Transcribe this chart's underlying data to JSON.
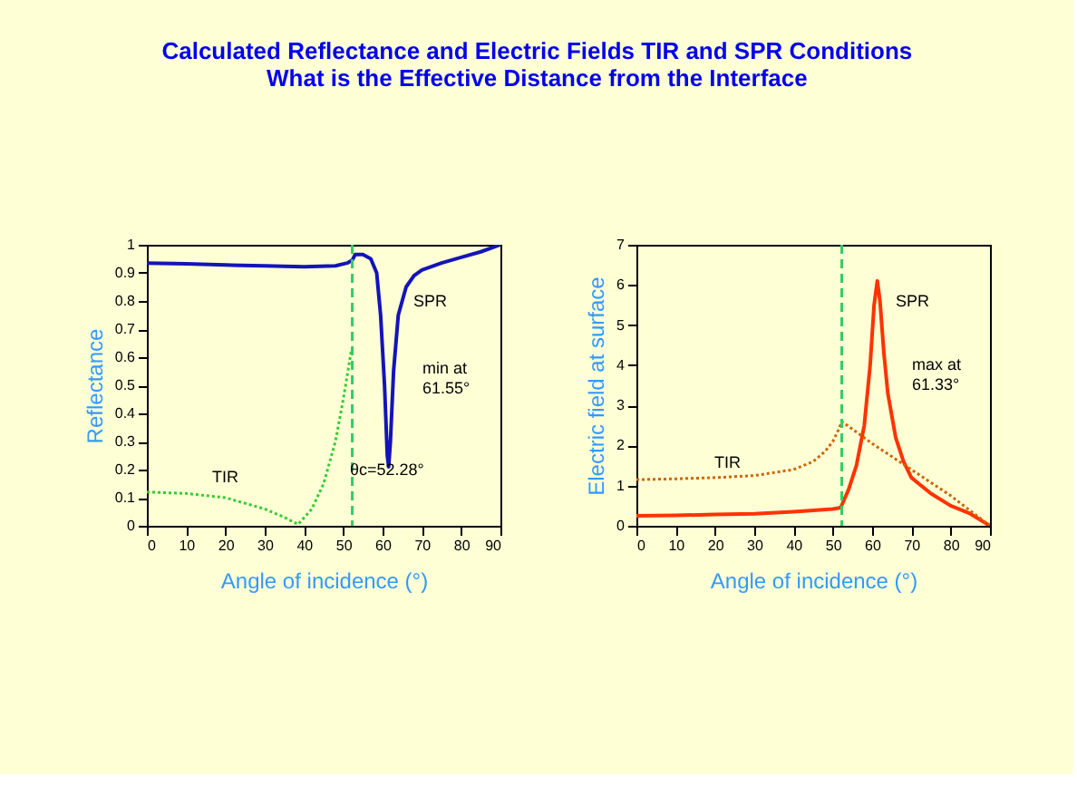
{
  "chart_data": [
    {
      "type": "line",
      "title": "Calculated Reflectance and Electric Fields TIR and SPR Conditions\nWhat is the Effective Distance from the Interface",
      "xlabel": "Angle of incidence (°)",
      "ylabel": "Reflectance",
      "xlim": [
        0,
        90
      ],
      "xticks": [
        0,
        10,
        20,
        30,
        40,
        50,
        60,
        70,
        80,
        90
      ],
      "ylim": [
        0,
        1
      ],
      "yticks": [
        0,
        0.1,
        0.2,
        0.3,
        0.4,
        0.5,
        0.6,
        0.7,
        0.8,
        0.9,
        1
      ],
      "series": [
        {
          "color": "#1414b8",
          "line_style": "solid",
          "x": [
            0,
            10,
            20,
            30,
            40,
            48,
            51,
            52.28,
            53,
            55,
            57,
            58.5,
            59.5,
            60.5,
            61.2,
            61.55,
            62,
            62.8,
            64,
            66,
            68,
            70,
            75,
            80,
            85,
            90
          ],
          "values": [
            0.935,
            0.932,
            0.928,
            0.925,
            0.922,
            0.925,
            0.935,
            0.945,
            0.965,
            0.965,
            0.95,
            0.9,
            0.75,
            0.5,
            0.25,
            0.21,
            0.3,
            0.55,
            0.75,
            0.85,
            0.89,
            0.91,
            0.935,
            0.955,
            0.975,
            1.0
          ]
        },
        {
          "color": "#33cc33",
          "line_style": "dotted",
          "x": [
            0,
            10,
            20,
            30,
            35,
            38.5,
            42,
            45,
            48,
            50,
            52
          ],
          "values": [
            0.12,
            0.115,
            0.1,
            0.06,
            0.03,
            0.005,
            0.06,
            0.15,
            0.3,
            0.45,
            0.62
          ]
        }
      ],
      "ref_lines": [
        {
          "axis": "x",
          "value": 52.28,
          "color": "#33cc66",
          "line_style": "dashed"
        }
      ],
      "annotations": [
        "SPR",
        "min at\n61.55°",
        "TIR",
        "θc=52.28°"
      ]
    },
    {
      "type": "line",
      "xlabel": "Angle of incidence (°)",
      "ylabel": "Electric field at surface",
      "xlim": [
        0,
        90
      ],
      "xticks": [
        0,
        10,
        20,
        30,
        40,
        50,
        60,
        70,
        80,
        90
      ],
      "ylim": [
        0,
        7
      ],
      "yticks": [
        0,
        1,
        2,
        3,
        4,
        5,
        6,
        7
      ],
      "series": [
        {
          "color": "#ff3300",
          "line_style": "solid",
          "x": [
            0,
            10,
            20,
            30,
            40,
            50,
            52,
            54,
            56,
            58,
            59.5,
            60.5,
            61.33,
            62,
            63,
            64,
            66,
            68,
            70,
            75,
            80,
            85,
            90
          ],
          "values": [
            0.25,
            0.26,
            0.28,
            0.3,
            0.35,
            0.42,
            0.45,
            0.9,
            1.5,
            2.5,
            4,
            5.5,
            6.1,
            5.6,
            4.3,
            3.3,
            2.2,
            1.6,
            1.2,
            0.8,
            0.5,
            0.3,
            0
          ]
        },
        {
          "color": "#cc6600",
          "line_style": "dotted",
          "x": [
            0,
            10,
            20,
            30,
            40,
            45,
            48,
            50,
            51.5,
            52.28,
            60,
            70,
            80,
            90
          ],
          "values": [
            1.15,
            1.17,
            1.2,
            1.25,
            1.4,
            1.6,
            1.85,
            2.1,
            2.4,
            2.6,
            2.05,
            1.4,
            0.75,
            0
          ]
        }
      ],
      "ref_lines": [
        {
          "axis": "x",
          "value": 52.28,
          "color": "#33cc66",
          "line_style": "dashed"
        }
      ],
      "annotations": [
        "SPR",
        "max at\n61.33°",
        "TIR"
      ]
    }
  ]
}
